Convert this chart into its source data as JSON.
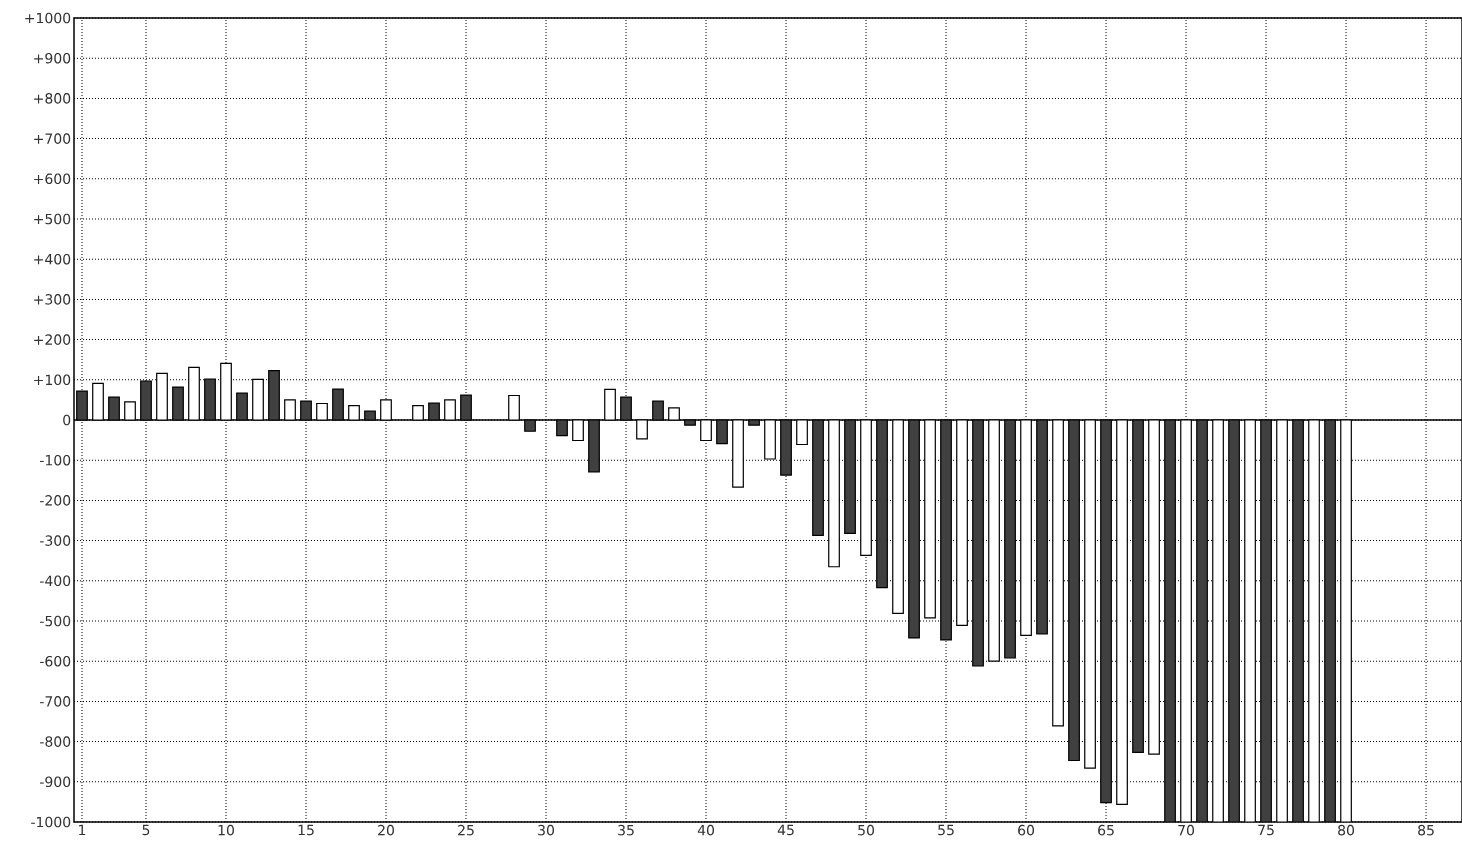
{
  "chart_data": {
    "type": "bar",
    "x": [
      1,
      2,
      3,
      4,
      5,
      6,
      7,
      8,
      9,
      10,
      11,
      12,
      13,
      14,
      15,
      16,
      17,
      18,
      19,
      20,
      21,
      22,
      23,
      24,
      25,
      26,
      27,
      28,
      29,
      30,
      31,
      32,
      33,
      34,
      35,
      36,
      37,
      38,
      39,
      40,
      41,
      42,
      43,
      44,
      45,
      46,
      47,
      48,
      49,
      50,
      51,
      52,
      53,
      54,
      55,
      56,
      57,
      58,
      59,
      60,
      61,
      62,
      63,
      64,
      65,
      66,
      67,
      68,
      69,
      70,
      71,
      72,
      73,
      74,
      75,
      76,
      77,
      78,
      79,
      80
    ],
    "values": [
      72,
      91,
      57,
      45,
      97,
      116,
      82,
      131,
      102,
      141,
      67,
      101,
      123,
      50,
      47,
      41,
      77,
      36,
      22,
      50,
      null,
      36,
      42,
      50,
      62,
      null,
      null,
      61,
      -28,
      null,
      -39,
      -51,
      -129,
      76,
      57,
      -47,
      47,
      30,
      -13,
      -51,
      -59,
      -167,
      -13,
      -97,
      -137,
      -61,
      -287,
      -365,
      -282,
      -337,
      -417,
      -481,
      -542,
      -492,
      -547,
      -511,
      -612,
      -600,
      -592,
      -536,
      -532,
      -761,
      -847,
      -866,
      -952,
      -956,
      -827,
      -831,
      -1000,
      -1000,
      -1000,
      -1000,
      -1000,
      -1000,
      -1000,
      -1000,
      -1000,
      -1000,
      -1000,
      -1000
    ],
    "colors": [
      "#404040",
      "#ffffff",
      "#404040",
      "#ffffff",
      "#404040",
      "#ffffff",
      "#404040",
      "#ffffff",
      "#404040",
      "#ffffff",
      "#404040",
      "#ffffff",
      "#404040",
      "#ffffff",
      "#404040",
      "#ffffff",
      "#404040",
      "#ffffff",
      "#404040",
      "#ffffff",
      "#404040",
      "#ffffff",
      "#404040",
      "#ffffff",
      "#404040",
      "#ffffff",
      "#404040",
      "#ffffff",
      "#404040",
      "#ffffff",
      "#404040",
      "#ffffff",
      "#404040",
      "#ffffff",
      "#404040",
      "#ffffff",
      "#404040",
      "#ffffff",
      "#404040",
      "#ffffff",
      "#404040",
      "#ffffff",
      "#404040",
      "#ffffff",
      "#404040",
      "#ffffff",
      "#404040",
      "#ffffff",
      "#404040",
      "#ffffff",
      "#404040",
      "#ffffff",
      "#404040",
      "#ffffff",
      "#404040",
      "#ffffff",
      "#404040",
      "#ffffff",
      "#404040",
      "#ffffff",
      "#404040",
      "#ffffff",
      "#404040",
      "#ffffff",
      "#404040",
      "#ffffff",
      "#404040",
      "#ffffff",
      "#404040",
      "#ffffff",
      "#404040",
      "#ffffff",
      "#404040",
      "#ffffff",
      "#404040",
      "#ffffff",
      "#404040",
      "#ffffff",
      "#404040",
      "#ffffff"
    ],
    "xlim": [
      0.5,
      87.25
    ],
    "xticks": [
      1,
      5,
      10,
      15,
      20,
      25,
      30,
      35,
      40,
      45,
      50,
      55,
      60,
      65,
      70,
      75,
      80,
      85
    ],
    "ylim": [
      -1000,
      1000
    ],
    "yticks": [
      {
        "value": 1000,
        "label": "+1000"
      },
      {
        "value": 900,
        "label": "+900"
      },
      {
        "value": 800,
        "label": "+800"
      },
      {
        "value": 700,
        "label": "+700"
      },
      {
        "value": 600,
        "label": "+600"
      },
      {
        "value": 500,
        "label": "+500"
      },
      {
        "value": 400,
        "label": "+400"
      },
      {
        "value": 300,
        "label": "+300"
      },
      {
        "value": 200,
        "label": "+200"
      },
      {
        "value": 100,
        "label": "+100"
      },
      0,
      -100,
      -200,
      -300,
      -400,
      -500,
      -600,
      -700,
      -800,
      -900,
      -1000
    ],
    "grid": true
  }
}
